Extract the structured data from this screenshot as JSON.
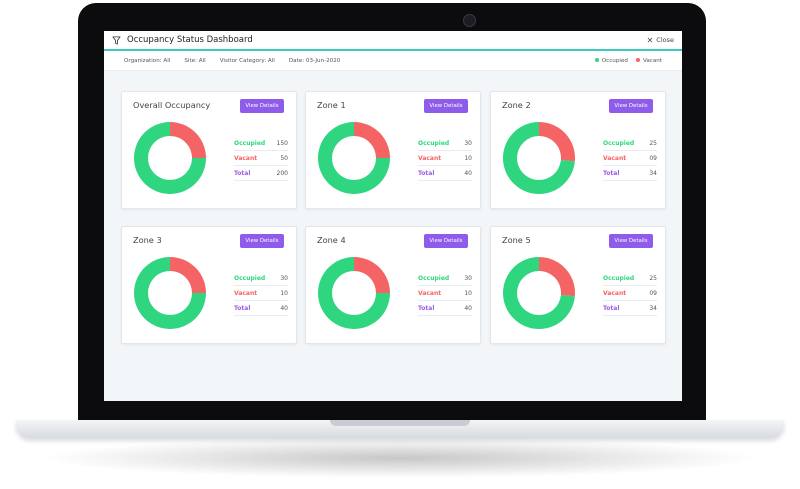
{
  "window": {
    "title": "Occupancy Status Dashboard",
    "close_label": "Close"
  },
  "filters": {
    "organization": "Organization: All",
    "site": "Site: All",
    "visitor_category": "Visitor Category: All",
    "date": "Date: 03-Jun-2020"
  },
  "legend": {
    "occupied": "Occupied",
    "vacant": "Vacant"
  },
  "colors": {
    "occupied": "#2fd67f",
    "vacant": "#f46464",
    "accent": "#8e5bea",
    "teal": "#3cc9c0"
  },
  "button_label": "View Details",
  "stat_labels": {
    "occupied": "Occupied",
    "vacant": "Vacant",
    "total": "Total"
  },
  "cards": [
    {
      "title": "Overall Occupancy",
      "occupied": "150",
      "vacant": "50",
      "total": "200"
    },
    {
      "title": "Zone 1",
      "occupied": "30",
      "vacant": "10",
      "total": "40"
    },
    {
      "title": "Zone 2",
      "occupied": "25",
      "vacant": "09",
      "total": "34"
    },
    {
      "title": "Zone 3",
      "occupied": "30",
      "vacant": "10",
      "total": "40"
    },
    {
      "title": "Zone 4",
      "occupied": "30",
      "vacant": "10",
      "total": "40"
    },
    {
      "title": "Zone 5",
      "occupied": "25",
      "vacant": "09",
      "total": "34"
    }
  ],
  "chart_data": [
    {
      "type": "pie",
      "categories": [
        "Occupied",
        "Vacant"
      ],
      "values": [
        150,
        50
      ]
    },
    {
      "type": "pie",
      "categories": [
        "Occupied",
        "Vacant"
      ],
      "values": [
        30,
        10
      ]
    },
    {
      "type": "pie",
      "categories": [
        "Occupied",
        "Vacant"
      ],
      "values": [
        25,
        9
      ]
    },
    {
      "type": "pie",
      "categories": [
        "Occupied",
        "Vacant"
      ],
      "values": [
        30,
        10
      ]
    },
    {
      "type": "pie",
      "categories": [
        "Occupied",
        "Vacant"
      ],
      "values": [
        30,
        10
      ]
    },
    {
      "type": "pie",
      "categories": [
        "Occupied",
        "Vacant"
      ],
      "values": [
        25,
        9
      ]
    }
  ]
}
